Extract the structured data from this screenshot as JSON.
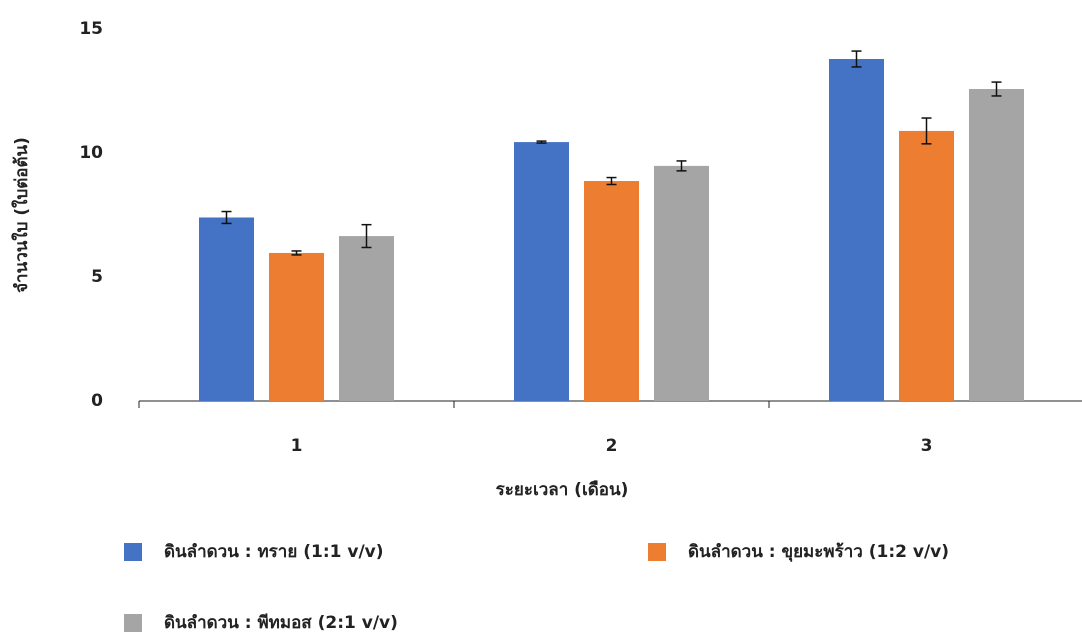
{
  "chart_data": {
    "type": "bar",
    "x_label": "ระยะเวลา (เดือน)",
    "y_label": "จำนวนใบ (ใบต่อต้น)",
    "categories": [
      "1",
      "2",
      "3"
    ],
    "series": [
      {
        "name": "ดินลำดวน : ทราย (1:1 v/v)",
        "color": "#4472c4",
        "values": [
          7.4,
          10.44,
          13.79
        ],
        "errors": [
          0.24,
          0.04,
          0.32
        ]
      },
      {
        "name": "ดินลำดวน : ขุยมะพร้าว (1:2 v/v)",
        "color": "#ed7d31",
        "values": [
          5.97,
          8.87,
          10.89
        ],
        "errors": [
          0.08,
          0.14,
          0.52
        ]
      },
      {
        "name": "ดินลำดวน : พีทมอส (2:1 v/v)",
        "color": "#a5a5a5",
        "values": [
          6.65,
          9.48,
          12.58
        ],
        "errors": [
          0.46,
          0.2,
          0.28
        ]
      }
    ],
    "ylim": [
      0,
      15
    ],
    "yticks": [
      0,
      5,
      10,
      15
    ],
    "grid": false
  }
}
